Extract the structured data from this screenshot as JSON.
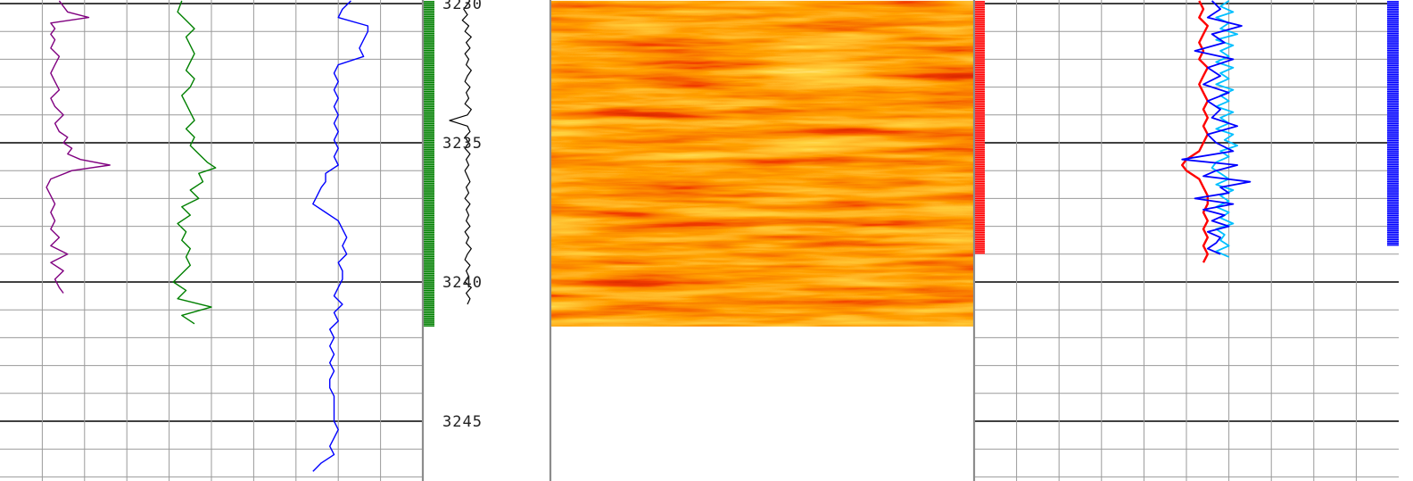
{
  "chart_data": {
    "type": "line",
    "title": "",
    "xlabel": "",
    "ylabel": "",
    "depth_range": [
      3229.9,
      3247.0
    ],
    "depth_ticks": [
      3230,
      3235,
      3240,
      3245
    ],
    "grid": true,
    "colors": {
      "major_grid": "#000000",
      "minor_grid": "#9a9a9a",
      "track1_series": [
        "#800080",
        "#008000",
        "#0000ff"
      ],
      "flags_left": "#008000",
      "depth_curve": "#000000",
      "image_palette": [
        "#000000",
        "#8b0000",
        "#ff0000",
        "#ff8c00",
        "#ffff00",
        "#ffffe0"
      ],
      "flags_right": "#ff0000",
      "track4_series": [
        "#ff0000",
        "#00bfff",
        "#0000ff"
      ],
      "flags_far_right": "#0000ff"
    },
    "tracks": [
      {
        "id": "track-1",
        "series": [
          {
            "depth": [
              3229.9,
              3230.3,
              3230.5,
              3230.7,
              3230.9,
              3231.1,
              3231.3,
              3231.6,
              3231.9,
              3232.2,
              3232.5,
              3232.8,
              3233.1,
              3233.4,
              3233.7,
              3234.0,
              3234.3,
              3234.6,
              3234.8,
              3235.0,
              3235.2,
              3235.4,
              3235.6,
              3235.8,
              3236.0,
              3236.3,
              3236.6,
              3236.9,
              3237.2,
              3237.5,
              3237.8,
              3238.1,
              3238.4,
              3238.7,
              3239.0,
              3239.3,
              3239.6,
              3239.9,
              3240.2,
              3240.4
            ],
            "values": [
              0.14,
              0.16,
              0.21,
              0.12,
              0.13,
              0.12,
              0.13,
              0.12,
              0.14,
              0.13,
              0.12,
              0.13,
              0.14,
              0.12,
              0.13,
              0.15,
              0.13,
              0.14,
              0.16,
              0.15,
              0.17,
              0.16,
              0.19,
              0.26,
              0.17,
              0.12,
              0.11,
              0.12,
              0.13,
              0.12,
              0.13,
              0.12,
              0.14,
              0.12,
              0.16,
              0.12,
              0.15,
              0.13,
              0.14,
              0.15
            ]
          },
          {
            "depth": [
              3229.9,
              3230.3,
              3230.6,
              3230.9,
              3231.2,
              3231.5,
              3231.8,
              3232.1,
              3232.4,
              3232.7,
              3233.0,
              3233.3,
              3233.6,
              3233.9,
              3234.2,
              3234.5,
              3234.8,
              3235.1,
              3235.4,
              3235.7,
              3235.9,
              3236.1,
              3236.4,
              3236.7,
              3237.0,
              3237.3,
              3237.6,
              3237.9,
              3238.2,
              3238.5,
              3238.8,
              3239.1,
              3239.4,
              3239.7,
              3240.0,
              3240.3,
              3240.6,
              3240.9,
              3241.2,
              3241.4,
              3241.5
            ],
            "values": [
              0.43,
              0.42,
              0.44,
              0.46,
              0.44,
              0.45,
              0.46,
              0.45,
              0.44,
              0.46,
              0.45,
              0.43,
              0.44,
              0.45,
              0.46,
              0.44,
              0.46,
              0.45,
              0.47,
              0.49,
              0.51,
              0.47,
              0.48,
              0.45,
              0.47,
              0.43,
              0.45,
              0.42,
              0.44,
              0.43,
              0.45,
              0.44,
              0.45,
              0.43,
              0.41,
              0.44,
              0.42,
              0.5,
              0.43,
              0.45,
              0.46
            ]
          },
          {
            "depth": [
              3229.9,
              3230.2,
              3230.5,
              3230.8,
              3231.0,
              3231.3,
              3231.6,
              3231.9,
              3232.2,
              3232.5,
              3232.8,
              3233.1,
              3233.4,
              3233.7,
              3234.0,
              3234.3,
              3234.6,
              3234.9,
              3235.2,
              3235.5,
              3235.8,
              3236.1,
              3236.4,
              3236.6,
              3236.9,
              3237.2,
              3237.5,
              3237.8,
              3238.1,
              3238.4,
              3238.7,
              3239.0,
              3239.3,
              3239.6,
              3239.9,
              3240.2,
              3240.5,
              3240.8,
              3241.1,
              3241.4,
              3241.7,
              3242.0,
              3242.3,
              3242.6,
              3242.9,
              3243.2,
              3243.5,
              3243.8,
              3244.1,
              3244.4,
              3244.7,
              3245.0,
              3245.3,
              3245.6,
              3245.9,
              3246.2,
              3246.5,
              3246.8
            ],
            "values": [
              0.83,
              0.81,
              0.8,
              0.87,
              0.87,
              0.86,
              0.85,
              0.86,
              0.8,
              0.79,
              0.8,
              0.79,
              0.8,
              0.79,
              0.8,
              0.79,
              0.8,
              0.79,
              0.8,
              0.79,
              0.8,
              0.77,
              0.77,
              0.76,
              0.75,
              0.74,
              0.77,
              0.8,
              0.81,
              0.82,
              0.81,
              0.82,
              0.8,
              0.81,
              0.81,
              0.8,
              0.79,
              0.81,
              0.79,
              0.8,
              0.78,
              0.79,
              0.78,
              0.79,
              0.78,
              0.79,
              0.78,
              0.78,
              0.79,
              0.79,
              0.79,
              0.79,
              0.8,
              0.79,
              0.78,
              0.79,
              0.76,
              0.74
            ]
          }
        ]
      },
      {
        "id": "track-2",
        "flags_depth_range": [
          3229.9,
          3241.6
        ],
        "series": [
          {
            "depth": [
              3229.9,
              3230.2,
              3230.4,
              3230.6,
              3230.8,
              3231.0,
              3231.2,
              3231.4,
              3231.6,
              3231.8,
              3232.0,
              3232.2,
              3232.4,
              3232.6,
              3232.8,
              3233.0,
              3233.2,
              3233.4,
              3233.6,
              3233.8,
              3234.0,
              3234.2,
              3234.4,
              3234.6,
              3234.8,
              3235.0,
              3235.2,
              3235.4,
              3235.6,
              3235.8,
              3236.0,
              3236.2,
              3236.4,
              3236.6,
              3236.8,
              3237.0,
              3237.2,
              3237.4,
              3237.6,
              3237.8,
              3238.0,
              3238.2,
              3238.4,
              3238.6,
              3238.8,
              3239.0,
              3239.2,
              3239.4,
              3239.6,
              3239.8,
              3240.0,
              3240.2,
              3240.4,
              3240.6,
              3240.8
            ],
            "values": [
              0.37,
              0.32,
              0.35,
              0.31,
              0.36,
              0.33,
              0.38,
              0.34,
              0.37,
              0.33,
              0.36,
              0.34,
              0.38,
              0.35,
              0.33,
              0.37,
              0.34,
              0.36,
              0.33,
              0.38,
              0.35,
              0.21,
              0.35,
              0.37,
              0.33,
              0.36,
              0.33,
              0.37,
              0.34,
              0.36,
              0.33,
              0.35,
              0.37,
              0.34,
              0.36,
              0.33,
              0.37,
              0.34,
              0.36,
              0.34,
              0.37,
              0.33,
              0.36,
              0.34,
              0.38,
              0.35,
              0.33,
              0.37,
              0.34,
              0.36,
              0.33,
              0.38,
              0.34,
              0.37,
              0.35
            ]
          }
        ]
      },
      {
        "id": "track-3",
        "image_depth_range": [
          3229.9,
          3241.6
        ]
      },
      {
        "id": "track-4",
        "flags_depth_range": [
          3229.9,
          3239.0
        ],
        "right_flags_depth_range": [
          3229.9,
          3238.7
        ],
        "series": [
          {
            "depth": [
              3229.9,
              3230.2,
              3230.5,
              3230.8,
              3231.1,
              3231.4,
              3231.7,
              3232.0,
              3232.3,
              3232.6,
              3232.9,
              3233.2,
              3233.5,
              3233.8,
              3234.1,
              3234.4,
              3234.7,
              3235.0,
              3235.3,
              3235.6,
              3235.8,
              3236.0,
              3236.3,
              3236.6,
              3236.9,
              3237.2,
              3237.5,
              3237.8,
              3238.1,
              3238.4,
              3238.7,
              3239.0,
              3239.3
            ],
            "values": [
              0.53,
              0.54,
              0.53,
              0.55,
              0.54,
              0.53,
              0.54,
              0.53,
              0.55,
              0.54,
              0.53,
              0.54,
              0.55,
              0.54,
              0.55,
              0.54,
              0.55,
              0.54,
              0.53,
              0.5,
              0.49,
              0.5,
              0.53,
              0.54,
              0.55,
              0.55,
              0.54,
              0.55,
              0.54,
              0.55,
              0.54,
              0.55,
              0.54
            ]
          },
          {
            "depth": [
              3229.9,
              3230.1,
              3230.3,
              3230.5,
              3230.7,
              3230.9,
              3231.1,
              3231.3,
              3231.5,
              3231.7,
              3231.9,
              3232.1,
              3232.3,
              3232.5,
              3232.7,
              3232.9,
              3233.1,
              3233.3,
              3233.5,
              3233.7,
              3233.9,
              3234.1,
              3234.3,
              3234.5,
              3234.7,
              3234.9,
              3235.1,
              3235.3,
              3235.5,
              3235.7,
              3235.9,
              3236.1,
              3236.3,
              3236.5,
              3236.7,
              3236.9,
              3237.1,
              3237.3,
              3237.5,
              3237.7,
              3237.9,
              3238.1,
              3238.3,
              3238.5,
              3238.7,
              3238.9,
              3239.1
            ],
            "values": [
              0.6,
              0.58,
              0.61,
              0.57,
              0.6,
              0.58,
              0.62,
              0.57,
              0.61,
              0.58,
              0.6,
              0.57,
              0.61,
              0.58,
              0.6,
              0.57,
              0.61,
              0.58,
              0.6,
              0.57,
              0.61,
              0.58,
              0.6,
              0.57,
              0.61,
              0.59,
              0.62,
              0.58,
              0.6,
              0.57,
              0.56,
              0.58,
              0.6,
              0.57,
              0.61,
              0.58,
              0.6,
              0.57,
              0.6,
              0.58,
              0.61,
              0.57,
              0.59,
              0.58,
              0.6,
              0.57,
              0.6
            ]
          },
          {
            "depth": [
              3229.9,
              3230.2,
              3230.5,
              3230.8,
              3231.1,
              3231.4,
              3231.7,
              3232.0,
              3232.3,
              3232.6,
              3232.9,
              3233.2,
              3233.5,
              3233.8,
              3234.1,
              3234.4,
              3234.7,
              3235.0,
              3235.3,
              3235.6,
              3235.8,
              3236.0,
              3236.2,
              3236.4,
              3236.6,
              3236.8,
              3237.0,
              3237.2,
              3237.4,
              3237.6,
              3237.8,
              3238.0,
              3238.2,
              3238.4,
              3238.6,
              3238.8,
              3239.0
            ],
            "values": [
              0.56,
              0.58,
              0.55,
              0.63,
              0.56,
              0.59,
              0.52,
              0.61,
              0.55,
              0.58,
              0.54,
              0.6,
              0.55,
              0.58,
              0.56,
              0.62,
              0.55,
              0.57,
              0.61,
              0.49,
              0.62,
              0.57,
              0.54,
              0.65,
              0.58,
              0.6,
              0.52,
              0.61,
              0.54,
              0.59,
              0.56,
              0.6,
              0.55,
              0.58,
              0.57,
              0.55,
              0.58
            ]
          }
        ]
      }
    ]
  }
}
